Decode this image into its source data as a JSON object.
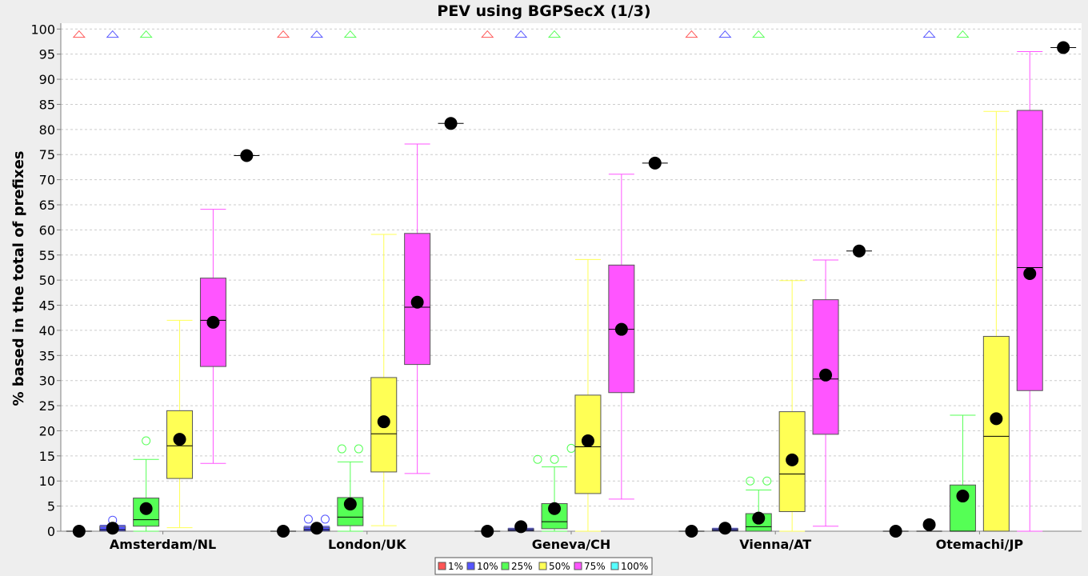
{
  "chart_data": {
    "type": "box",
    "title": "PEV using BGPSecX  (1/3)",
    "ylabel": "% based in the total of prefixes",
    "xlabel": "",
    "ylim": [
      0,
      100
    ],
    "yticks": [
      0,
      5,
      10,
      15,
      20,
      25,
      30,
      35,
      40,
      45,
      50,
      55,
      60,
      65,
      70,
      75,
      80,
      85,
      90,
      95,
      100
    ],
    "grid": true,
    "legend_position": "bottom",
    "categories": [
      "Amsterdam/NL",
      "London/UK",
      "Geneva/CH",
      "Vienna/AT",
      "Otemachi/JP"
    ],
    "series": [
      {
        "name": "1%",
        "color": "#ff5555",
        "boxes": [
          {
            "min": 0,
            "q1": 0,
            "median": 0,
            "q3": 0,
            "max": 0,
            "mean": 0,
            "outliers": [],
            "far_outliers": [
              99
            ]
          },
          {
            "min": 0,
            "q1": 0,
            "median": 0,
            "q3": 0,
            "max": 0,
            "mean": 0,
            "outliers": [],
            "far_outliers": [
              99
            ]
          },
          {
            "min": 0,
            "q1": 0,
            "median": 0,
            "q3": 0,
            "max": 0,
            "mean": 0,
            "outliers": [],
            "far_outliers": [
              99
            ]
          },
          {
            "min": 0,
            "q1": 0,
            "median": 0,
            "q3": 0,
            "max": 0,
            "mean": 0,
            "outliers": [],
            "far_outliers": [
              99
            ]
          },
          {
            "min": 0,
            "q1": 0,
            "median": 0,
            "q3": 0,
            "max": 0,
            "mean": 0,
            "outliers": [],
            "far_outliers": []
          }
        ]
      },
      {
        "name": "10%",
        "color": "#5555ff",
        "boxes": [
          {
            "min": 0,
            "q1": 0,
            "median": 0.3,
            "q3": 1,
            "max": 1.2,
            "mean": 0.6,
            "outliers": [
              2.2
            ],
            "far_outliers": [
              99
            ]
          },
          {
            "min": 0,
            "q1": 0,
            "median": 0.3,
            "q3": 0.8,
            "max": 1,
            "mean": 0.6,
            "outliers": [
              2.4,
              2.4
            ],
            "far_outliers": [
              99
            ]
          },
          {
            "min": 0,
            "q1": 0,
            "median": 0.2,
            "q3": 0.5,
            "max": 0.6,
            "mean": 0.9,
            "outliers": [],
            "far_outliers": [
              99
            ]
          },
          {
            "min": 0,
            "q1": 0,
            "median": 0.2,
            "q3": 0.5,
            "max": 0.6,
            "mean": 0.6,
            "outliers": [],
            "far_outliers": [
              99
            ]
          },
          {
            "min": 0,
            "q1": 0,
            "median": 0,
            "q3": 0,
            "max": 0,
            "mean": 1.3,
            "outliers": [],
            "far_outliers": [
              99
            ]
          }
        ]
      },
      {
        "name": "25%",
        "color": "#55ff55",
        "boxes": [
          {
            "min": 0,
            "q1": 1,
            "median": 2.3,
            "q3": 6.6,
            "max": 14.3,
            "mean": 4.5,
            "outliers": [
              18
            ],
            "far_outliers": [
              99
            ]
          },
          {
            "min": 0,
            "q1": 1.1,
            "median": 2.8,
            "q3": 6.7,
            "max": 13.8,
            "mean": 5.4,
            "outliers": [
              16.4,
              16.4
            ],
            "far_outliers": [
              99
            ]
          },
          {
            "min": 0,
            "q1": 0.5,
            "median": 1.9,
            "q3": 5.5,
            "max": 12.8,
            "mean": 4.5,
            "outliers": [
              14.3,
              14.3,
              16.5
            ],
            "far_outliers": [
              99
            ]
          },
          {
            "min": 0,
            "q1": 0,
            "median": 0.9,
            "q3": 3.5,
            "max": 8.2,
            "mean": 2.6,
            "outliers": [
              10,
              10
            ],
            "far_outliers": [
              99
            ]
          },
          {
            "min": 0,
            "q1": 0,
            "median": 0,
            "q3": 9.2,
            "max": 23.1,
            "mean": 7,
            "outliers": [],
            "far_outliers": [
              99
            ]
          }
        ]
      },
      {
        "name": "50%",
        "color": "#ffff55",
        "boxes": [
          {
            "min": 0.7,
            "q1": 10.5,
            "median": 17,
            "q3": 24,
            "max": 42,
            "mean": 18.3,
            "outliers": [],
            "far_outliers": []
          },
          {
            "min": 1.1,
            "q1": 11.8,
            "median": 19.4,
            "q3": 30.6,
            "max": 59.1,
            "mean": 21.8,
            "outliers": [],
            "far_outliers": []
          },
          {
            "min": 0,
            "q1": 7.5,
            "median": 16.8,
            "q3": 27.1,
            "max": 54.1,
            "mean": 18,
            "outliers": [],
            "far_outliers": []
          },
          {
            "min": 0,
            "q1": 3.9,
            "median": 11.4,
            "q3": 23.8,
            "max": 49.9,
            "mean": 14.2,
            "outliers": [],
            "far_outliers": []
          },
          {
            "min": 0,
            "q1": 0,
            "median": 18.9,
            "q3": 38.8,
            "max": 83.6,
            "mean": 22.4,
            "outliers": [],
            "far_outliers": []
          }
        ]
      },
      {
        "name": "75%",
        "color": "#ff55ff",
        "boxes": [
          {
            "min": 13.5,
            "q1": 32.8,
            "median": 42,
            "q3": 50.4,
            "max": 64.1,
            "mean": 41.6,
            "outliers": [],
            "far_outliers": []
          },
          {
            "min": 11.5,
            "q1": 33.2,
            "median": 44.6,
            "q3": 59.3,
            "max": 77.1,
            "mean": 45.6,
            "outliers": [],
            "far_outliers": []
          },
          {
            "min": 6.4,
            "q1": 27.6,
            "median": 40.2,
            "q3": 53,
            "max": 71.1,
            "mean": 40.2,
            "outliers": [],
            "far_outliers": []
          },
          {
            "min": 1,
            "q1": 19.3,
            "median": 30.3,
            "q3": 46.1,
            "max": 54,
            "mean": 31.1,
            "outliers": [],
            "far_outliers": []
          },
          {
            "min": 0,
            "q1": 28,
            "median": 52.5,
            "q3": 83.8,
            "max": 95.5,
            "mean": 51.3,
            "outliers": [],
            "far_outliers": []
          }
        ]
      },
      {
        "name": "100%",
        "color": "#55ffff",
        "boxes": [
          {
            "min": 74.8,
            "q1": 74.8,
            "median": 74.8,
            "q3": 74.8,
            "max": 74.8,
            "mean": 74.8,
            "outliers": [],
            "far_outliers": []
          },
          {
            "min": 81.2,
            "q1": 81.2,
            "median": 81.2,
            "q3": 81.2,
            "max": 81.2,
            "mean": 81.2,
            "outliers": [],
            "far_outliers": []
          },
          {
            "min": 73.3,
            "q1": 73.3,
            "median": 73.3,
            "q3": 73.3,
            "max": 73.3,
            "mean": 73.3,
            "outliers": [],
            "far_outliers": []
          },
          {
            "min": 55.8,
            "q1": 55.8,
            "median": 55.8,
            "q3": 55.8,
            "max": 55.8,
            "mean": 55.8,
            "outliers": [],
            "far_outliers": []
          },
          {
            "min": 96.3,
            "q1": 96.3,
            "median": 96.3,
            "q3": 96.3,
            "max": 96.3,
            "mean": 96.3,
            "outliers": [],
            "far_outliers": []
          }
        ]
      }
    ]
  }
}
